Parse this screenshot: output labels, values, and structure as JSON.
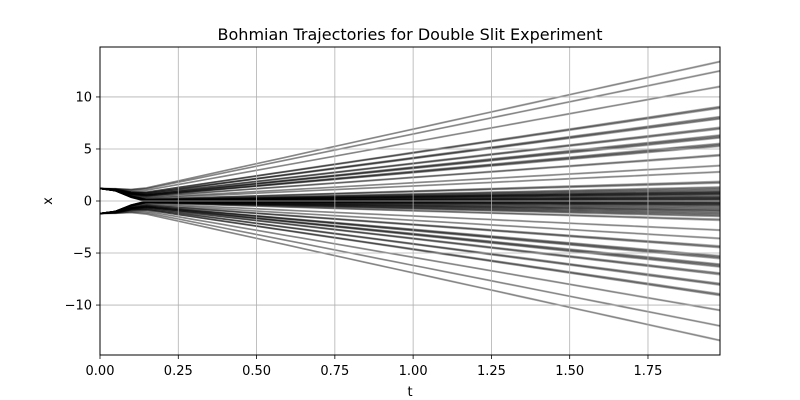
{
  "chart_data": {
    "type": "line",
    "title": "Bohmian Trajectories for Double Slit Experiment",
    "xlabel": "t",
    "ylabel": "x",
    "xlim": [
      0,
      1.98
    ],
    "ylim": [
      -14.8,
      14.8
    ],
    "xticks": [
      0.0,
      0.25,
      0.5,
      0.75,
      1.0,
      1.25,
      1.5,
      1.75
    ],
    "xtick_labels": [
      "0.00",
      "0.25",
      "0.50",
      "0.75",
      "1.00",
      "1.25",
      "1.50",
      "1.75"
    ],
    "yticks": [
      -10,
      -5,
      0,
      5,
      10
    ],
    "ytick_labels": [
      "−10",
      "−5",
      "0",
      "5",
      "10"
    ],
    "grid": true,
    "line_color": "#000000",
    "band_alpha": 0.28,
    "description_of_series": "ensemble of trajectories fanning out from two slits at x≈±1.2; rendered as many semi-transparent lines",
    "bands": [
      {
        "x0": 0.0,
        "x1": 13.4,
        "weight": 0.1
      },
      {
        "x0": 0.0,
        "x1": 12.5,
        "weight": 0.12
      },
      {
        "x0": 0.0,
        "x1": 11.0,
        "weight": 0.1
      },
      {
        "x0": 0.0,
        "x1": 9.0,
        "weight": 0.32
      },
      {
        "x0": 0.0,
        "x1": 8.0,
        "weight": 0.35
      },
      {
        "x0": 0.0,
        "x1": 7.0,
        "weight": 0.3
      },
      {
        "x0": 0.0,
        "x1": 6.2,
        "weight": 0.45
      },
      {
        "x0": 0.0,
        "x1": 5.4,
        "weight": 0.4
      },
      {
        "x0": 0.0,
        "x1": 4.4,
        "weight": 0.22
      },
      {
        "x0": 0.0,
        "x1": 3.4,
        "weight": 0.12
      },
      {
        "x0": 0.0,
        "x1": 2.8,
        "weight": 0.1
      },
      {
        "x0": 0.0,
        "x1": 1.8,
        "weight": 0.28
      },
      {
        "x0": 0.0,
        "x1": 1.0,
        "weight": 0.9
      },
      {
        "x0": 0.0,
        "x1": 0.5,
        "weight": 1.0
      },
      {
        "x0": 0.0,
        "x1": 0.0,
        "weight": 1.0
      },
      {
        "x0": 0.0,
        "x1": -0.5,
        "weight": 1.0
      },
      {
        "x0": 0.0,
        "x1": -1.2,
        "weight": 0.75
      },
      {
        "x0": 0.0,
        "x1": -1.8,
        "weight": 0.22
      },
      {
        "x0": 0.0,
        "x1": -2.8,
        "weight": 0.1
      },
      {
        "x0": 0.0,
        "x1": -3.6,
        "weight": 0.12
      },
      {
        "x0": 0.0,
        "x1": -4.4,
        "weight": 0.25
      },
      {
        "x0": 0.0,
        "x1": -5.4,
        "weight": 0.4
      },
      {
        "x0": 0.0,
        "x1": -6.2,
        "weight": 0.45
      },
      {
        "x0": 0.0,
        "x1": -7.0,
        "weight": 0.3
      },
      {
        "x0": 0.0,
        "x1": -8.0,
        "weight": 0.32
      },
      {
        "x0": 0.0,
        "x1": -9.0,
        "weight": 0.25
      },
      {
        "x0": 0.0,
        "x1": -10.5,
        "weight": 0.12
      },
      {
        "x0": 0.0,
        "x1": -12.0,
        "weight": 0.14
      },
      {
        "x0": 0.0,
        "x1": -13.4,
        "weight": 0.1
      }
    ]
  }
}
